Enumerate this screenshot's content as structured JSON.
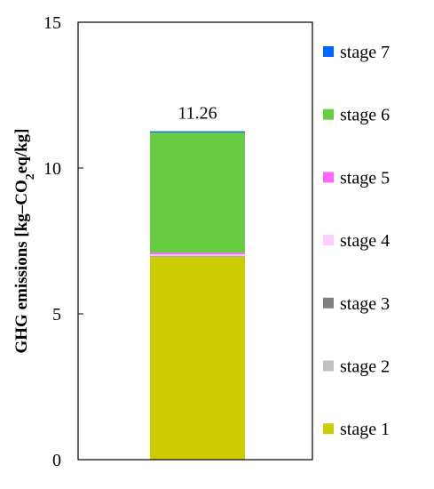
{
  "chart_data": {
    "type": "bar",
    "stacked": true,
    "categories": [
      ""
    ],
    "ylabel": "GHG emissions [kg–CO2eq/kg]",
    "ylim": [
      0,
      15
    ],
    "yticks": [
      "0",
      "5",
      "10",
      "15"
    ],
    "total_label": "11.26",
    "legend_position": "right",
    "series": [
      {
        "name": "stage 1",
        "values": [
          6.95
        ],
        "color": "#cccc00"
      },
      {
        "name": "stage 2",
        "values": [
          0.03
        ],
        "color": "#c0c0c0"
      },
      {
        "name": "stage 3",
        "values": [
          0.01
        ],
        "color": "#808080"
      },
      {
        "name": "stage 4",
        "values": [
          0.05
        ],
        "color": "#ffccff"
      },
      {
        "name": "stage 5",
        "values": [
          0.06
        ],
        "color": "#ff66ff"
      },
      {
        "name": "stage 6",
        "values": [
          4.12
        ],
        "color": "#66cc44"
      },
      {
        "name": "stage 7",
        "values": [
          0.04
        ],
        "color": "#0066ff"
      }
    ]
  }
}
